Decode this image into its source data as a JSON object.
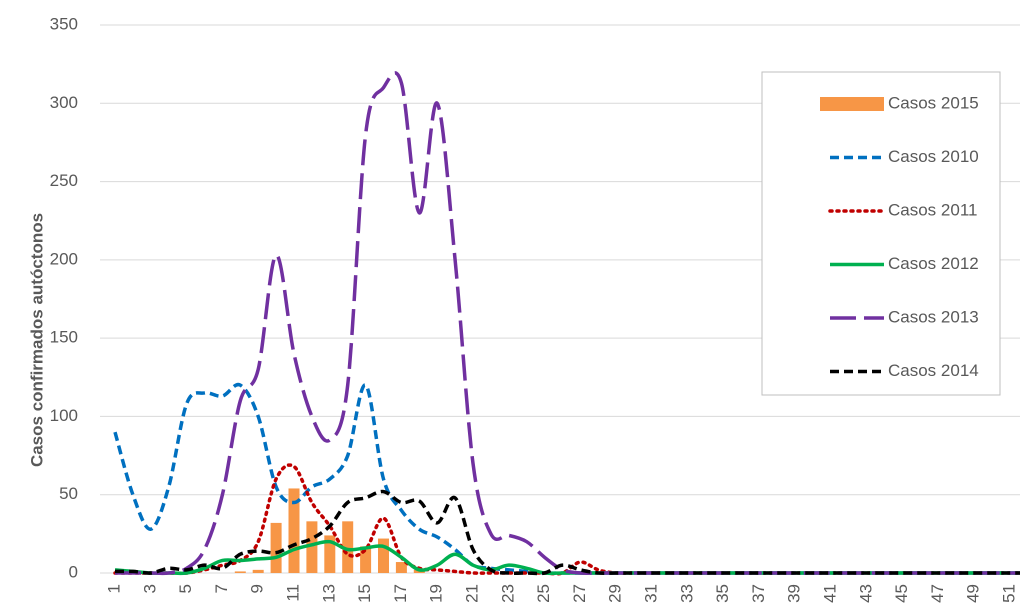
{
  "chart_data": {
    "type": "combo",
    "y_label": "Casos confirmados autóctonos",
    "categories": [
      "1",
      null,
      "3",
      null,
      "5",
      null,
      "7",
      null,
      "9",
      null,
      "11",
      null,
      "13",
      null,
      "15",
      null,
      "17",
      null,
      "19",
      null,
      "21",
      null,
      "23",
      null,
      "25",
      null,
      "27",
      null,
      "29",
      null,
      "31",
      null,
      "33",
      null,
      "35",
      null,
      "37",
      null,
      "39",
      null,
      "41",
      null,
      "43",
      null,
      "45",
      null,
      "47",
      null,
      "49",
      null,
      "51",
      null
    ],
    "ylim": [
      0,
      350
    ],
    "yticks": [
      0,
      50,
      100,
      150,
      200,
      250,
      300,
      350
    ],
    "grid": true,
    "legend": "right",
    "series": [
      {
        "name": "Casos 2015",
        "type": "bar",
        "color": "#f79646",
        "values": [
          0,
          0,
          0,
          0,
          0,
          0,
          0,
          1,
          2,
          32,
          54,
          33,
          24,
          33,
          17,
          22,
          7,
          2,
          null,
          null,
          null,
          null,
          null,
          null,
          null,
          null,
          null,
          null,
          null,
          null,
          null,
          null,
          null,
          null,
          null,
          null,
          null,
          null,
          null,
          null,
          null,
          null,
          null,
          null,
          null,
          null,
          null,
          null,
          null,
          null,
          null,
          null
        ]
      },
      {
        "name": "Casos 2010",
        "type": "line",
        "dash": "dashed",
        "color": "#0070c0",
        "values": [
          90,
          50,
          28,
          55,
          108,
          115,
          113,
          120,
          100,
          55,
          45,
          55,
          60,
          75,
          120,
          60,
          40,
          28,
          23,
          15,
          5,
          3,
          2,
          1,
          0,
          0,
          0,
          0,
          0,
          0,
          0,
          0,
          0,
          0,
          0,
          0,
          0,
          0,
          0,
          0,
          0,
          0,
          0,
          0,
          0,
          0,
          0,
          0,
          0,
          0,
          0,
          0
        ]
      },
      {
        "name": "Casos 2011",
        "type": "line",
        "dash": "dotted",
        "color": "#c00000",
        "values": [
          0,
          0,
          0,
          0,
          0,
          2,
          5,
          8,
          20,
          60,
          68,
          45,
          30,
          12,
          15,
          35,
          10,
          3,
          2,
          1,
          0,
          0,
          0,
          0,
          0,
          0,
          7,
          2,
          0,
          0,
          0,
          0,
          0,
          0,
          0,
          0,
          0,
          0,
          0,
          0,
          0,
          0,
          0,
          0,
          0,
          0,
          0,
          0,
          0,
          0,
          0,
          0
        ]
      },
      {
        "name": "Casos 2012",
        "type": "line",
        "dash": "solid",
        "color": "#00b050",
        "values": [
          2,
          1,
          0,
          0,
          0,
          3,
          8,
          8,
          9,
          10,
          15,
          18,
          20,
          15,
          16,
          17,
          10,
          2,
          5,
          12,
          5,
          2,
          5,
          3,
          0,
          0,
          0,
          0,
          0,
          0,
          0,
          0,
          0,
          0,
          0,
          0,
          0,
          0,
          0,
          0,
          0,
          0,
          0,
          0,
          0,
          0,
          0,
          0,
          0,
          0,
          0,
          0
        ]
      },
      {
        "name": "Casos 2013",
        "type": "line",
        "dash": "longdash",
        "color": "#7030a0",
        "values": [
          0,
          0,
          0,
          0,
          3,
          15,
          50,
          110,
          130,
          203,
          140,
          100,
          85,
          120,
          280,
          310,
          313,
          230,
          300,
          200,
          70,
          25,
          24,
          20,
          10,
          2,
          0,
          0,
          0,
          0,
          0,
          0,
          0,
          0,
          0,
          0,
          0,
          0,
          0,
          0,
          0,
          0,
          0,
          0,
          0,
          0,
          0,
          0,
          0,
          0,
          0,
          0
        ]
      },
      {
        "name": "Casos 2014",
        "type": "line",
        "dash": "dashed",
        "color": "#000000",
        "values": [
          1,
          1,
          0,
          3,
          2,
          5,
          3,
          12,
          14,
          13,
          18,
          22,
          30,
          45,
          48,
          52,
          45,
          46,
          32,
          48,
          15,
          2,
          0,
          0,
          0,
          5,
          2,
          0,
          0,
          0,
          0,
          0,
          0,
          0,
          0,
          0,
          0,
          0,
          0,
          0,
          0,
          0,
          0,
          0,
          0,
          0,
          0,
          0,
          0,
          0,
          0,
          0
        ]
      }
    ]
  }
}
